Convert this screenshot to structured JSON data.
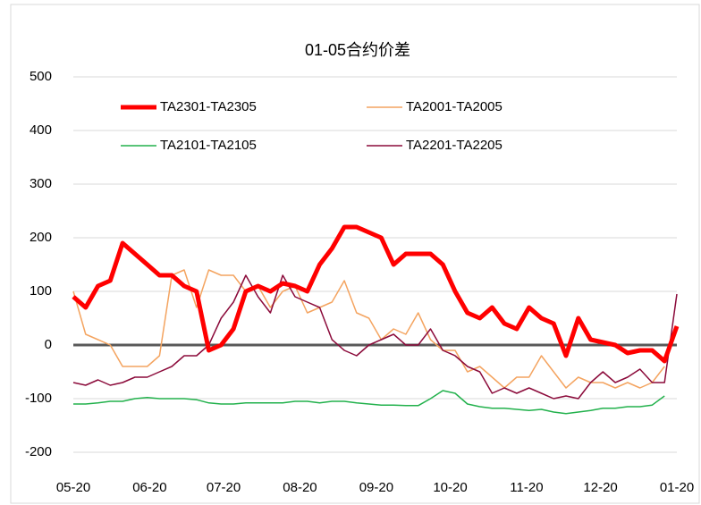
{
  "chart_data": {
    "type": "line",
    "title": "01-05合约价差",
    "x": [
      0,
      5,
      10,
      15,
      20,
      25,
      30,
      35,
      40,
      45,
      50,
      55,
      60,
      65,
      70,
      75,
      80,
      85,
      90,
      95,
      100,
      105,
      110,
      115,
      120,
      125,
      130,
      135,
      140,
      145,
      150,
      155,
      160,
      165,
      170,
      175,
      180,
      185,
      190,
      195,
      200,
      205,
      210,
      215,
      220,
      225,
      230,
      235,
      240,
      245
    ],
    "xlim": [
      0,
      245
    ],
    "xticks": [
      {
        "value": 0,
        "label": "05-20"
      },
      {
        "value": 31,
        "label": "06-20"
      },
      {
        "value": 61,
        "label": "07-20"
      },
      {
        "value": 92,
        "label": "08-20"
      },
      {
        "value": 123,
        "label": "09-20"
      },
      {
        "value": 153,
        "label": "10-20"
      },
      {
        "value": 184,
        "label": "11-20"
      },
      {
        "value": 214,
        "label": "12-20"
      },
      {
        "value": 245,
        "label": "01-20"
      }
    ],
    "ylim": [
      -200,
      500
    ],
    "yticks": [
      -200,
      -100,
      0,
      100,
      200,
      300,
      400,
      500
    ],
    "grid": true,
    "series": [
      {
        "name": "TA2301-TA2305",
        "color": "#ff0000",
        "width": 5,
        "values": [
          90,
          70,
          110,
          120,
          190,
          170,
          150,
          130,
          130,
          110,
          100,
          -10,
          0,
          30,
          100,
          110,
          100,
          115,
          110,
          100,
          150,
          180,
          220,
          220,
          210,
          200,
          150,
          170,
          170,
          170,
          150,
          100,
          60,
          50,
          70,
          40,
          30,
          70,
          50,
          40,
          -20,
          50,
          10,
          5,
          0,
          -15,
          -10,
          -10,
          -30,
          35
        ]
      },
      {
        "name": "TA2001-TA2005",
        "color": "#f4a460",
        "width": 1.5,
        "values": [
          100,
          20,
          10,
          0,
          -40,
          -40,
          -40,
          -20,
          130,
          140,
          70,
          140,
          130,
          130,
          100,
          110,
          70,
          100,
          110,
          60,
          70,
          80,
          120,
          60,
          50,
          10,
          30,
          20,
          60,
          10,
          -10,
          -10,
          -50,
          -40,
          -60,
          -80,
          -60,
          -60,
          -20,
          -50,
          -80,
          -60,
          -70,
          -70,
          -80,
          -70,
          -80,
          -70,
          -40,
          null
        ]
      },
      {
        "name": "TA2101-TA2105",
        "color": "#22b14c",
        "width": 1.5,
        "values": [
          -110,
          -110,
          -108,
          -105,
          -105,
          -100,
          -98,
          -100,
          -100,
          -100,
          -102,
          -108,
          -110,
          -110,
          -108,
          -108,
          -108,
          -108,
          -105,
          -105,
          -108,
          -105,
          -105,
          -108,
          -110,
          -112,
          -112,
          -113,
          -113,
          -100,
          -85,
          -90,
          -110,
          -115,
          -118,
          -118,
          -120,
          -122,
          -120,
          -125,
          -128,
          -125,
          -122,
          -118,
          -118,
          -115,
          -115,
          -112,
          -95,
          null
        ]
      },
      {
        "name": "TA2201-TA2205",
        "color": "#8b0a3a",
        "width": 1.5,
        "values": [
          -70,
          -75,
          -65,
          -75,
          -70,
          -60,
          -60,
          -50,
          -40,
          -20,
          -20,
          0,
          50,
          80,
          130,
          90,
          60,
          130,
          90,
          80,
          70,
          10,
          -10,
          -20,
          0,
          10,
          20,
          0,
          0,
          30,
          -10,
          -20,
          -40,
          -50,
          -90,
          -80,
          -90,
          -80,
          -90,
          -100,
          -95,
          -100,
          -70,
          -50,
          -70,
          -60,
          -45,
          -70,
          -70,
          95
        ]
      }
    ]
  }
}
